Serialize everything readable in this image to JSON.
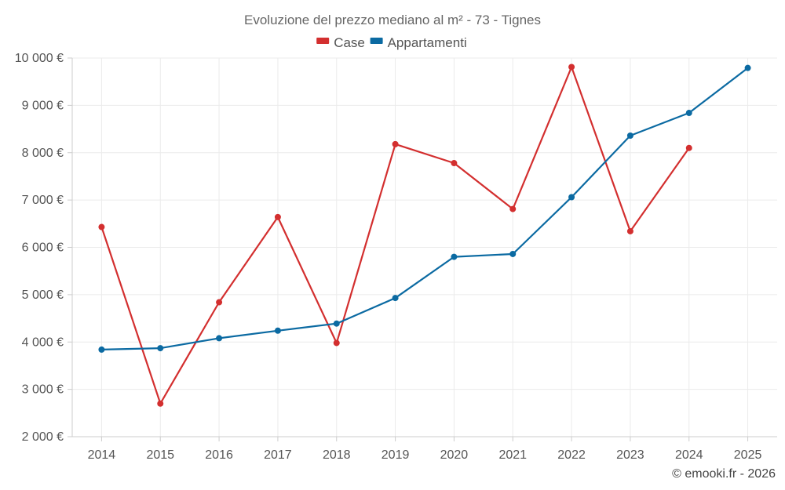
{
  "chart_data": {
    "type": "line",
    "title": "Evoluzione del prezzo mediano al m² - 73 - Tignes",
    "xlabel": "",
    "ylabel": "",
    "categories": [
      "2014",
      "2015",
      "2016",
      "2017",
      "2018",
      "2019",
      "2020",
      "2021",
      "2022",
      "2023",
      "2024",
      "2025"
    ],
    "y_tick_labels": [
      "2 000 €",
      "3 000 €",
      "4 000 €",
      "5 000 €",
      "6 000 €",
      "7 000 €",
      "8 000 €",
      "9 000 €",
      "10 000 €"
    ],
    "y_ticks": [
      2000,
      3000,
      4000,
      5000,
      6000,
      7000,
      8000,
      9000,
      10000
    ],
    "ylim": [
      2000,
      10000
    ],
    "grid": true,
    "legend_position": "top-center",
    "series": [
      {
        "name": "Case",
        "color": "#d32f2f",
        "values": [
          6430,
          2700,
          4840,
          6640,
          3980,
          8180,
          7780,
          6810,
          9810,
          6340,
          8100,
          null
        ]
      },
      {
        "name": "Appartamenti",
        "color": "#0b6aa2",
        "values": [
          3840,
          3870,
          4080,
          4240,
          4390,
          4930,
          5800,
          5860,
          7060,
          8360,
          8840,
          9790
        ]
      }
    ],
    "credit": "© emooki.fr - 2026"
  }
}
